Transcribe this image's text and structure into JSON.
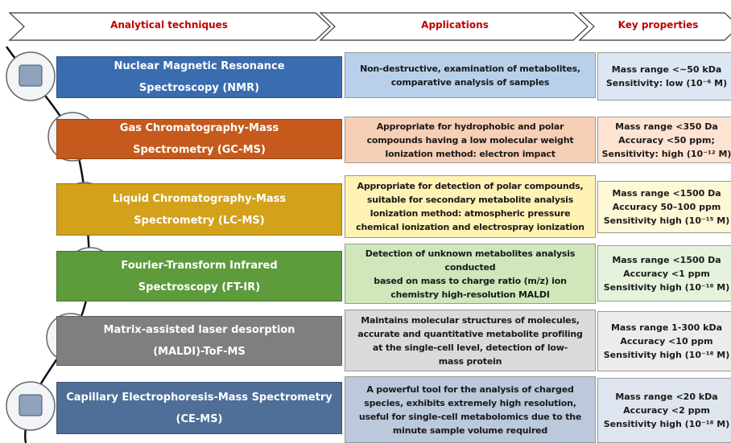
{
  "headers": [
    "Analytical techniques",
    "Applications",
    "Key properties"
  ],
  "rows": [
    {
      "technique": [
        "Nuclear Magnetic Resonance",
        "Spectroscopy (NMR)"
      ],
      "applications": [
        "Non-destructive, examination of metabolites,",
        "comparative analysis of samples"
      ],
      "properties": [
        "Mass range <~50 kDa",
        "Sensitivity: low (10⁻⁶ M)"
      ]
    },
    {
      "technique": [
        "Gas Chromatography-Mass",
        "Spectrometry (GC-MS)"
      ],
      "applications": [
        "Appropriate for hydrophobic and polar",
        "compounds having a low molecular weight",
        "Ionization method: electron impact"
      ],
      "properties": [
        "Mass range <350 Da",
        "Accuracy <50 ppm;",
        "Sensitivity: high (10⁻¹² M)"
      ]
    },
    {
      "technique": [
        "Liquid Chromatography-Mass",
        "Spectrometry (LC-MS)"
      ],
      "applications": [
        "Appropriate for detection of polar compounds,",
        "suitable for secondary metabolite analysis",
        "Ionization method: atmospheric pressure",
        "chemical ionization and electrospray ionization"
      ],
      "properties": [
        "Mass range <1500 Da",
        "Accuracy 50–100 ppm",
        "Sensitivity high (10⁻¹⁵ M)"
      ]
    },
    {
      "technique": [
        "Fourier-Transform Infrared",
        "Spectroscopy (FT-IR)"
      ],
      "applications": [
        "Detection of unknown metabolites analysis",
        "conducted",
        "based on mass to charge ratio (m/z) ion",
        "chemistry high-resolution MALDI"
      ],
      "properties": [
        "Mass range <1500 Da",
        "Accuracy <1 ppm",
        "Sensitivity high (10⁻¹⁸ M)"
      ]
    },
    {
      "technique": [
        "Matrix-assisted laser desorption",
        "(MALDI)-ToF-MS"
      ],
      "applications": [
        "Maintains molecular structures of molecules,",
        "accurate and quantitative metabolite profiling",
        "at the single-cell level, detection of low-",
        "mass protein"
      ],
      "properties": [
        "Mass range 1-300 kDa",
        "Accuracy <10 ppm",
        "Sensitivity high (10⁻¹⁸ M)"
      ]
    },
    {
      "technique": [
        "Capillary Electrophoresis-Mass Spectrometry",
        "(CE-MS)"
      ],
      "applications": [
        "A powerful tool for the analysis of charged",
        "species, exhibits extremely high resolution,",
        "useful for single-cell metabolomics due to the",
        "minute sample volume required"
      ],
      "properties": [
        "Mass range <20 kDa",
        "Accuracy <2 ppm",
        "Sensitivity high (10⁻¹⁸ M)"
      ]
    }
  ]
}
